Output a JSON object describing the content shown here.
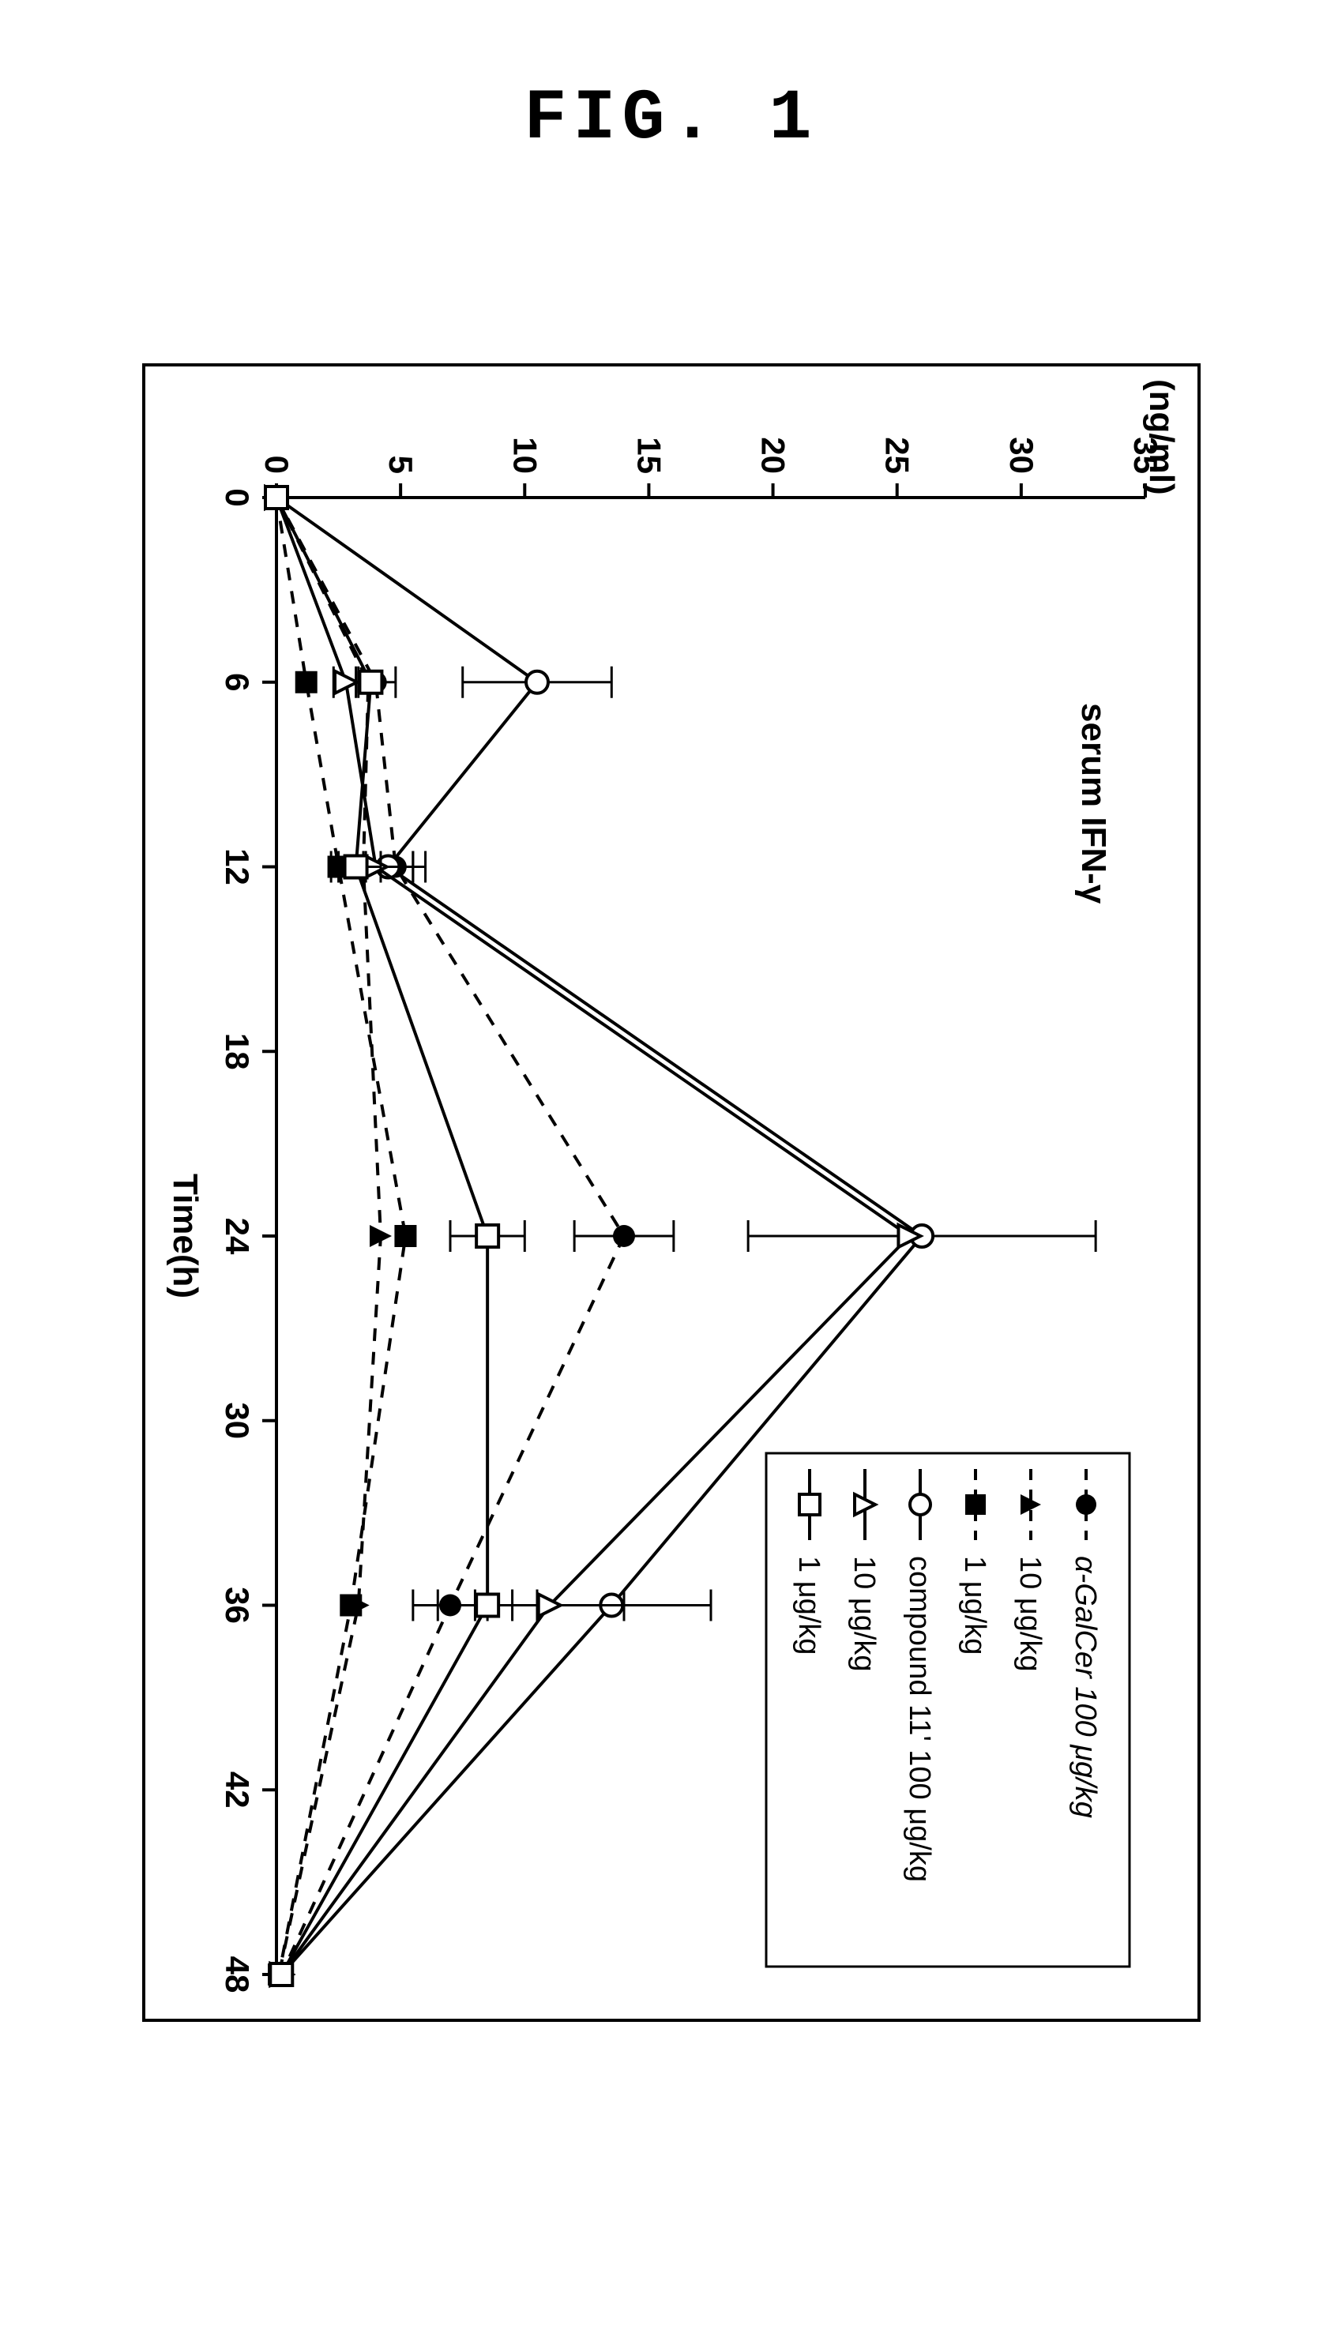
{
  "figure_label": "FIG. 1",
  "chart": {
    "type": "line",
    "title": "serum IFN-γ",
    "title_fontsize": 44,
    "xlabel": "Time(h)",
    "ylabel_unit": "(ng/ml)",
    "label_fontsize": 44,
    "tick_fontsize": 42,
    "background_color": "#ffffff",
    "axis_color": "#000000",
    "line_width": 4,
    "error_cap_width": 20,
    "xlim": [
      0,
      48
    ],
    "ylim": [
      0,
      35
    ],
    "xticks": [
      0,
      6,
      12,
      18,
      24,
      30,
      36,
      42,
      48
    ],
    "yticks": [
      0,
      5,
      10,
      15,
      20,
      25,
      30,
      35
    ],
    "x_values": [
      0,
      6,
      12,
      24,
      36,
      48
    ],
    "series": [
      {
        "key": "s1",
        "label": "α-GalCer 100 μg/kg",
        "style": "dash",
        "marker": "circle-filled",
        "color": "#000000",
        "y": [
          0,
          4.0,
          4.8,
          14.0,
          7.0,
          0.2
        ],
        "err": [
          0,
          0.8,
          1.2,
          2.0,
          1.5,
          0
        ]
      },
      {
        "key": "s2",
        "label": "10 μg/kg",
        "style": "dash",
        "marker": "triangle-filled",
        "color": "#000000",
        "y": [
          0,
          3.7,
          3.5,
          4.2,
          3.3,
          0.1
        ],
        "err": [
          0,
          0,
          0,
          0,
          0,
          0
        ]
      },
      {
        "key": "s3",
        "label": "1 μg/kg",
        "style": "dash",
        "marker": "square-filled",
        "color": "#000000",
        "y": [
          0,
          1.2,
          2.5,
          5.2,
          3.0,
          0.1
        ],
        "err": [
          0,
          0,
          0,
          0,
          0,
          0
        ]
      },
      {
        "key": "s4",
        "label": "compound 11' 100 μg/kg",
        "style": "solid",
        "marker": "circle-open",
        "color": "#000000",
        "y": [
          0,
          10.5,
          4.5,
          26.0,
          13.5,
          0.2
        ],
        "err": [
          0,
          3.0,
          1.0,
          7.0,
          4.0,
          0
        ]
      },
      {
        "key": "s5",
        "label": "10 μg/kg",
        "style": "solid",
        "marker": "triangle-open",
        "color": "#000000",
        "y": [
          0,
          2.8,
          4.0,
          25.5,
          11.0,
          0.2
        ],
        "err": [
          0,
          0.5,
          1.5,
          0,
          3.0,
          0
        ]
      },
      {
        "key": "s6",
        "label": "1 μg/kg",
        "style": "solid",
        "marker": "square-open",
        "color": "#000000",
        "y": [
          0,
          3.8,
          3.2,
          8.5,
          8.5,
          0.2
        ],
        "err": [
          0,
          0,
          1.0,
          1.5,
          2.0,
          0
        ]
      }
    ],
    "legend": {
      "position": "top-right",
      "border_color": "#000000",
      "font_family": "Arial"
    },
    "rotation_deg": 90
  }
}
